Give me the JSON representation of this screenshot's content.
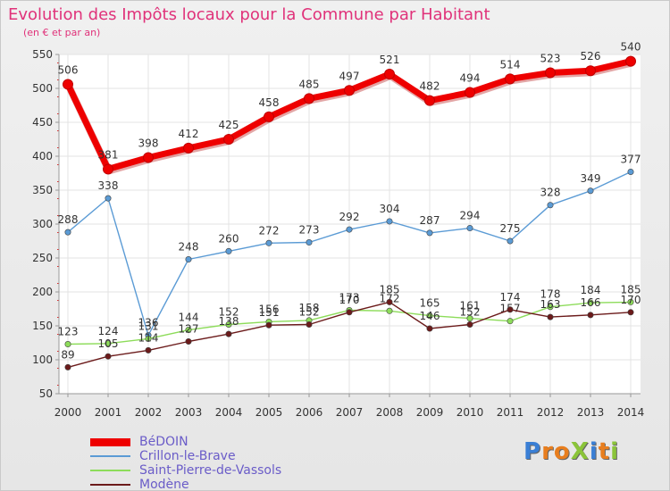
{
  "header": {
    "title": "Evolution des Impôts locaux pour la Commune par Habitant",
    "subtitle": "(en € et par an)"
  },
  "chart_data": {
    "type": "line",
    "title": "Evolution des Impôts locaux pour la Commune par Habitant",
    "subtitle": "(en € et par an)",
    "xlabel": "",
    "ylabel": "",
    "x": [
      2000,
      2001,
      2002,
      2003,
      2004,
      2005,
      2006,
      2007,
      2008,
      2009,
      2010,
      2011,
      2012,
      2013,
      2014
    ],
    "ylim": [
      50,
      550
    ],
    "yticks": [
      50,
      100,
      150,
      200,
      250,
      300,
      350,
      400,
      450,
      500,
      550
    ],
    "grid": true,
    "legend_position": "bottom-left",
    "series": [
      {
        "name": "BéDOIN",
        "color": "#ee0000",
        "emphasis": true,
        "values": [
          506,
          381,
          398,
          412,
          425,
          458,
          485,
          497,
          521,
          482,
          494,
          514,
          523,
          526,
          540
        ]
      },
      {
        "name": "Crillon-le-Brave",
        "color": "#5b9bd5",
        "values": [
          288,
          338,
          136,
          248,
          260,
          272,
          273,
          292,
          304,
          287,
          294,
          275,
          328,
          349,
          377
        ]
      },
      {
        "name": "Saint-Pierre-de-Vassols",
        "color": "#8ddc5a",
        "values": [
          123,
          124,
          131,
          144,
          152,
          156,
          158,
          173,
          172,
          165,
          161,
          157,
          178,
          184,
          185
        ]
      },
      {
        "name": "Modène",
        "color": "#6b1a1a",
        "values": [
          89,
          105,
          114,
          127,
          138,
          151,
          152,
          170,
          185,
          146,
          152,
          174,
          163,
          166,
          170
        ]
      }
    ]
  },
  "branding": {
    "logo": "ProXiti",
    "letters": [
      {
        "ch": "P",
        "color": "#3a7fd5"
      },
      {
        "ch": "r",
        "color": "#e87e1e"
      },
      {
        "ch": "o",
        "color": "#e87e1e"
      },
      {
        "ch": "X",
        "color": "#8bc43a"
      },
      {
        "ch": "i",
        "color": "#3a7fd5"
      },
      {
        "ch": "t",
        "color": "#e87e1e"
      },
      {
        "ch": "i",
        "color": "#8bc43a"
      }
    ]
  }
}
